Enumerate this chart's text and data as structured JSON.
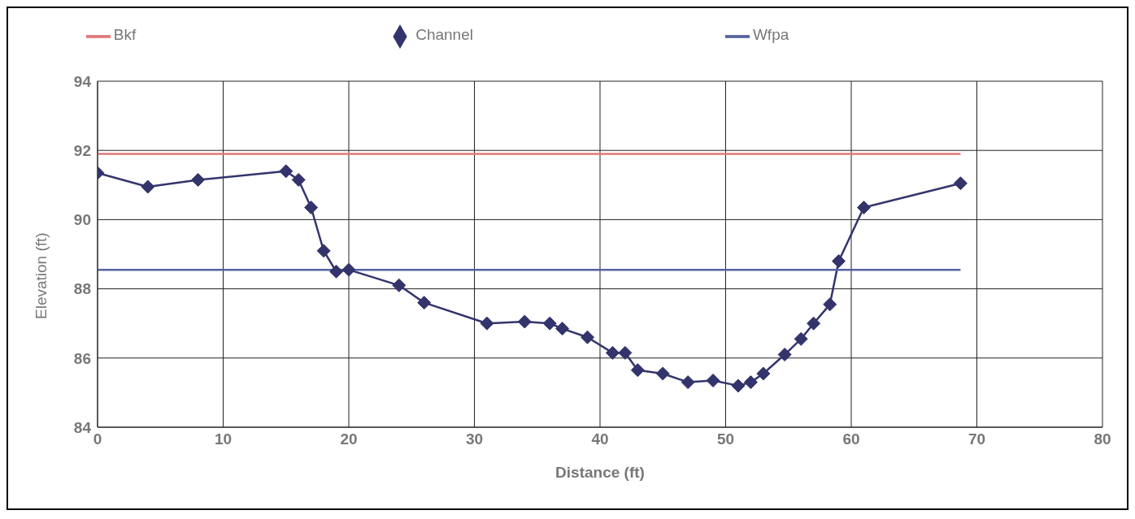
{
  "chart_data": {
    "type": "line",
    "xlabel": "Distance  (ft)",
    "ylabel": "Elevation (ft)",
    "xlim": [
      0,
      80
    ],
    "xticks": [
      0,
      10,
      20,
      30,
      40,
      50,
      60,
      70,
      80
    ],
    "ylim": [
      84,
      94
    ],
    "yticks": [
      84,
      86,
      88,
      90,
      92,
      94
    ],
    "grid": true,
    "legend": "top",
    "line_style": "solid",
    "series": [
      {
        "name": "Channel",
        "color": "#33346c",
        "marker": "diamond",
        "x": [
          0,
          4,
          8,
          15,
          16,
          17,
          18,
          19,
          20,
          24,
          26,
          31,
          34,
          36,
          37,
          39,
          41,
          42,
          43,
          45,
          47,
          49,
          51,
          52,
          53,
          54.7,
          56,
          57,
          58.3,
          59,
          61,
          68.7
        ],
        "values": [
          91.35,
          90.95,
          91.15,
          91.4,
          91.15,
          90.35,
          89.1,
          88.5,
          88.55,
          88.1,
          87.6,
          87.0,
          87.05,
          87.0,
          86.85,
          86.6,
          86.15,
          86.15,
          85.65,
          85.55,
          85.3,
          85.35,
          85.2,
          85.3,
          85.55,
          86.1,
          86.55,
          87.0,
          87.55,
          88.8,
          90.35,
          91.05
        ]
      },
      {
        "name": "Wfpa",
        "color": "#5563a0",
        "marker": "none",
        "x": [
          0,
          68.7
        ],
        "values": [
          88.55,
          88.55
        ]
      },
      {
        "name": "Bkf",
        "color": "#e07878",
        "marker": "none",
        "x": [
          0,
          68.7
        ],
        "values": [
          91.9,
          91.9
        ]
      }
    ]
  }
}
